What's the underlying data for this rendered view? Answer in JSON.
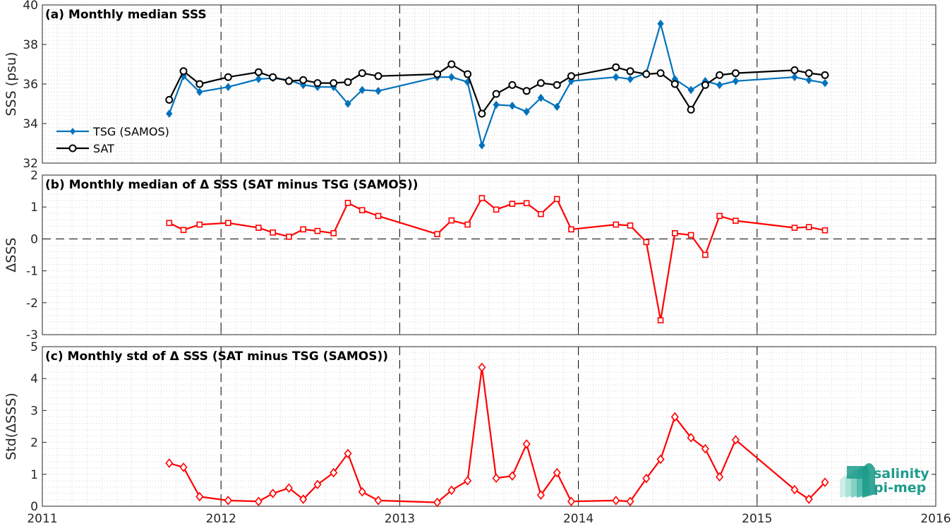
{
  "chart_data": [
    {
      "type": "line",
      "title": "(a) Monthly median SSS",
      "ylabel": "SSS (psu)",
      "xlim": [
        2011,
        2016
      ],
      "ylim": [
        32,
        40
      ],
      "xticks": [
        "2011",
        "2012",
        "2013",
        "2014",
        "2015",
        "2016"
      ],
      "yticks": [
        "32",
        "34",
        "36",
        "38",
        "40"
      ],
      "grid": true,
      "legend_position": "bottom-left",
      "series": [
        {
          "name": "TSG (SAMOS)",
          "color": "#0072bd",
          "marker": "diamond-filled",
          "x": [
            2011.71,
            2011.79,
            2011.88,
            2012.04,
            2012.21,
            2012.29,
            2012.38,
            2012.46,
            2012.54,
            2012.63,
            2012.71,
            2012.79,
            2012.88,
            2013.21,
            2013.29,
            2013.38,
            2013.46,
            2013.54,
            2013.63,
            2013.71,
            2013.79,
            2013.88,
            2013.96,
            2014.21,
            2014.29,
            2014.38,
            2014.46,
            2014.54,
            2014.63,
            2014.71,
            2014.79,
            2014.88,
            2015.21,
            2015.29,
            2015.38
          ],
          "y": [
            34.5,
            36.4,
            35.6,
            35.85,
            36.25,
            36.3,
            36.2,
            35.95,
            35.85,
            35.85,
            35.0,
            35.7,
            35.65,
            36.35,
            36.35,
            36.1,
            32.9,
            34.95,
            34.9,
            34.6,
            35.3,
            34.85,
            36.15,
            36.35,
            36.25,
            36.55,
            39.05,
            36.25,
            35.7,
            36.15,
            35.95,
            36.15,
            36.35,
            36.2,
            36.05
          ]
        },
        {
          "name": "SAT",
          "color": "#000000",
          "marker": "circle-open",
          "x": [
            2011.71,
            2011.79,
            2011.88,
            2012.04,
            2012.21,
            2012.29,
            2012.38,
            2012.46,
            2012.54,
            2012.63,
            2012.71,
            2012.79,
            2012.88,
            2013.21,
            2013.29,
            2013.38,
            2013.46,
            2013.54,
            2013.63,
            2013.71,
            2013.79,
            2013.88,
            2013.96,
            2014.21,
            2014.29,
            2014.38,
            2014.46,
            2014.54,
            2014.63,
            2014.71,
            2014.79,
            2014.88,
            2015.21,
            2015.29,
            2015.38
          ],
          "y": [
            35.2,
            36.65,
            36.0,
            36.35,
            36.6,
            36.35,
            36.15,
            36.2,
            36.05,
            36.05,
            36.1,
            36.55,
            36.4,
            36.5,
            37.0,
            36.5,
            34.5,
            35.5,
            35.95,
            35.65,
            36.05,
            35.95,
            36.4,
            36.85,
            36.65,
            36.5,
            36.55,
            36.0,
            34.7,
            35.95,
            36.45,
            36.55,
            36.7,
            36.55,
            36.45
          ]
        }
      ]
    },
    {
      "type": "line",
      "title": "(b) Monthly median of Δ SSS (SAT minus TSG (SAMOS))",
      "ylabel": "ΔSSS",
      "xlim": [
        2011,
        2016
      ],
      "ylim": [
        -3,
        2
      ],
      "xticks": [
        "2011",
        "2012",
        "2013",
        "2014",
        "2015",
        "2016"
      ],
      "yticks": [
        "-3",
        "-2",
        "-1",
        "0",
        "1",
        "2"
      ],
      "grid": true,
      "zero_line": true,
      "series": [
        {
          "color": "#ff0000",
          "marker": "square-open",
          "x": [
            2011.71,
            2011.79,
            2011.88,
            2012.04,
            2012.21,
            2012.29,
            2012.38,
            2012.46,
            2012.54,
            2012.63,
            2012.71,
            2012.79,
            2012.88,
            2013.21,
            2013.29,
            2013.38,
            2013.46,
            2013.54,
            2013.63,
            2013.71,
            2013.79,
            2013.88,
            2013.96,
            2014.21,
            2014.29,
            2014.38,
            2014.46,
            2014.54,
            2014.63,
            2014.71,
            2014.79,
            2014.88,
            2015.21,
            2015.29,
            2015.38
          ],
          "y": [
            0.5,
            0.28,
            0.45,
            0.5,
            0.35,
            0.2,
            0.07,
            0.3,
            0.25,
            0.18,
            1.13,
            0.9,
            0.72,
            0.15,
            0.58,
            0.45,
            1.28,
            0.92,
            1.1,
            1.12,
            0.78,
            1.25,
            0.3,
            0.45,
            0.42,
            -0.1,
            -2.55,
            0.18,
            0.12,
            -0.5,
            0.72,
            0.57,
            0.35,
            0.37,
            0.27
          ]
        }
      ]
    },
    {
      "type": "line",
      "title": "(c) Monthly std of Δ SSS (SAT minus TSG (SAMOS))",
      "ylabel": "Std(ΔSSS)",
      "xlim": [
        2011,
        2016
      ],
      "ylim": [
        0,
        5
      ],
      "xticks": [
        "2011",
        "2012",
        "2013",
        "2014",
        "2015",
        "2016"
      ],
      "yticks": [
        "0",
        "1",
        "2",
        "3",
        "4",
        "5"
      ],
      "grid": true,
      "series": [
        {
          "color": "#ff0000",
          "marker": "diamond-open",
          "x": [
            2011.71,
            2011.79,
            2011.88,
            2012.04,
            2012.21,
            2012.29,
            2012.38,
            2012.46,
            2012.54,
            2012.63,
            2012.71,
            2012.79,
            2012.88,
            2013.21,
            2013.29,
            2013.38,
            2013.46,
            2013.54,
            2013.63,
            2013.71,
            2013.79,
            2013.88,
            2013.96,
            2014.21,
            2014.29,
            2014.38,
            2014.46,
            2014.54,
            2014.63,
            2014.71,
            2014.79,
            2014.88,
            2015.21,
            2015.29,
            2015.38
          ],
          "y": [
            1.35,
            1.22,
            0.3,
            0.18,
            0.15,
            0.4,
            0.57,
            0.22,
            0.68,
            1.05,
            1.65,
            0.45,
            0.18,
            0.12,
            0.5,
            0.8,
            4.35,
            0.88,
            0.95,
            1.95,
            0.35,
            1.05,
            0.15,
            0.18,
            0.15,
            0.87,
            1.47,
            2.8,
            2.15,
            1.8,
            0.92,
            2.08,
            0.52,
            0.22,
            0.75
          ]
        }
      ]
    }
  ],
  "logo": {
    "line1": "salinity",
    "line2": "pi-mep",
    "color": "#1f9c8c"
  }
}
